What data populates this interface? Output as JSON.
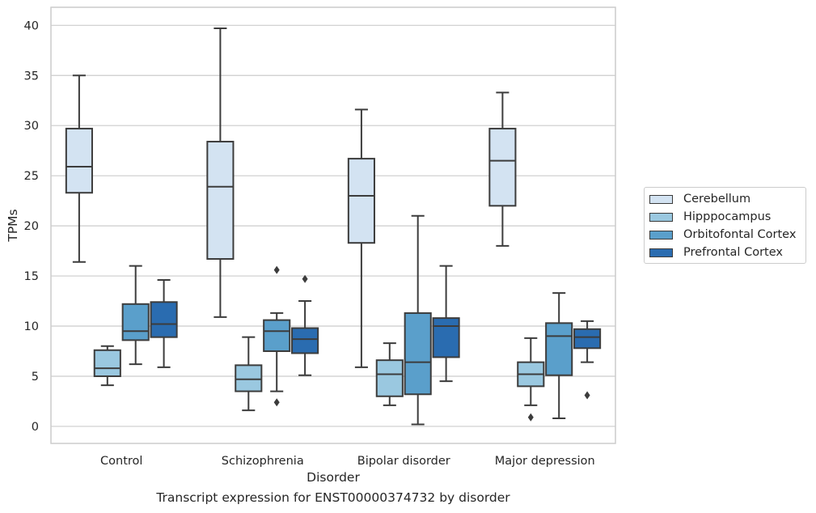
{
  "caption": "Transcript expression for ENST00000374732 by disorder",
  "chart_data": {
    "type": "box",
    "xlabel": "Disorder",
    "ylabel": "TPMs",
    "ylim": [
      -1.7,
      41.8
    ],
    "yticks": [
      0,
      5,
      10,
      15,
      20,
      25,
      30,
      35,
      40
    ],
    "grid": "horizontal",
    "legend_position": "right",
    "categories": [
      "Control",
      "Schizophrenia",
      "Bipolar disorder",
      "Major depression"
    ],
    "series": [
      {
        "name": "Cerebellum",
        "color": "#d3e3f2",
        "boxes": [
          {
            "whislo": 16.4,
            "q1": 23.3,
            "med": 25.9,
            "q3": 29.7,
            "whishi": 35.0,
            "fliers": []
          },
          {
            "whislo": 10.9,
            "q1": 16.7,
            "med": 23.9,
            "q3": 28.4,
            "whishi": 39.7,
            "fliers": []
          },
          {
            "whislo": 5.9,
            "q1": 18.3,
            "med": 23.0,
            "q3": 26.7,
            "whishi": 31.6,
            "fliers": []
          },
          {
            "whislo": 18.0,
            "q1": 22.0,
            "med": 26.5,
            "q3": 29.7,
            "whishi": 33.3,
            "fliers": []
          }
        ]
      },
      {
        "name": "Hipppocampus",
        "color": "#9ac8e0",
        "boxes": [
          {
            "whislo": 4.1,
            "q1": 5.0,
            "med": 5.8,
            "q3": 7.6,
            "whishi": 8.0,
            "fliers": []
          },
          {
            "whislo": 1.6,
            "q1": 3.5,
            "med": 4.7,
            "q3": 6.1,
            "whishi": 8.9,
            "fliers": []
          },
          {
            "whislo": 2.1,
            "q1": 3.0,
            "med": 5.2,
            "q3": 6.6,
            "whishi": 8.3,
            "fliers": []
          },
          {
            "whislo": 2.1,
            "q1": 4.0,
            "med": 5.2,
            "q3": 6.4,
            "whishi": 8.8,
            "fliers": [
              0.9
            ]
          }
        ]
      },
      {
        "name": "Orbitofontal Cortex",
        "color": "#5a9fcb",
        "boxes": [
          {
            "whislo": 6.2,
            "q1": 8.6,
            "med": 9.5,
            "q3": 12.2,
            "whishi": 16.0,
            "fliers": []
          },
          {
            "whislo": 3.5,
            "q1": 7.5,
            "med": 9.5,
            "q3": 10.6,
            "whishi": 11.3,
            "fliers": [
              15.6,
              2.4
            ]
          },
          {
            "whislo": 0.2,
            "q1": 3.2,
            "med": 6.4,
            "q3": 11.3,
            "whishi": 21.0,
            "fliers": []
          },
          {
            "whislo": 0.8,
            "q1": 5.1,
            "med": 9.0,
            "q3": 10.3,
            "whishi": 13.3,
            "fliers": []
          }
        ]
      },
      {
        "name": "Prefrontal Cortex",
        "color": "#2a6cb0",
        "boxes": [
          {
            "whislo": 5.9,
            "q1": 8.9,
            "med": 10.2,
            "q3": 12.4,
            "whishi": 14.6,
            "fliers": []
          },
          {
            "whislo": 5.1,
            "q1": 7.3,
            "med": 8.7,
            "q3": 9.8,
            "whishi": 12.5,
            "fliers": [
              14.7
            ]
          },
          {
            "whislo": 4.5,
            "q1": 6.9,
            "med": 10.0,
            "q3": 10.8,
            "whishi": 16.0,
            "fliers": []
          },
          {
            "whislo": 6.4,
            "q1": 7.8,
            "med": 8.9,
            "q3": 9.7,
            "whishi": 10.5,
            "fliers": [
              3.1
            ]
          }
        ]
      }
    ]
  }
}
